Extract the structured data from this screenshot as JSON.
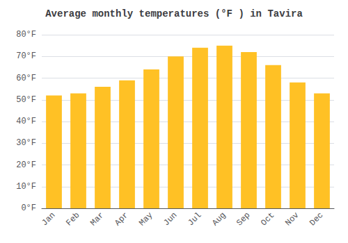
{
  "chart_data": {
    "type": "bar",
    "title": "Average monthly temperatures (°F ) in Tavira",
    "categories": [
      "Jan",
      "Feb",
      "Mar",
      "Apr",
      "May",
      "Jun",
      "Jul",
      "Aug",
      "Sep",
      "Oct",
      "Nov",
      "Dec"
    ],
    "values": [
      52,
      53,
      56,
      59,
      64,
      70,
      74,
      75,
      72,
      66,
      58,
      53
    ],
    "color": "#FFC125",
    "ylim": [
      0,
      80
    ],
    "yticks": [
      {
        "value": 0,
        "label": "0°F"
      },
      {
        "value": 10,
        "label": "10°F"
      },
      {
        "value": 20,
        "label": "20°F"
      },
      {
        "value": 30,
        "label": "30°F"
      },
      {
        "value": 40,
        "label": "40°F"
      },
      {
        "value": 50,
        "label": "50°F"
      },
      {
        "value": 60,
        "label": "60°F"
      },
      {
        "value": 70,
        "label": "70°F"
      },
      {
        "value": 80,
        "label": "80°F"
      }
    ],
    "grid": true
  }
}
